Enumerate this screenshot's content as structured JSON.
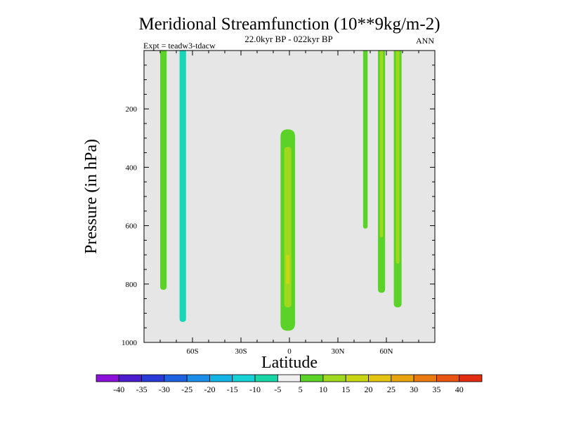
{
  "chart_data": {
    "type": "filled-contour",
    "title": "Meridional Streamfunction (10**9kg/m-2)",
    "subtitle": "22.0kyr BP - 022kyr BP",
    "left_note": "Expt = teadw3-tdacw",
    "right_note": "ANN",
    "xlabel": "Latitude",
    "ylabel": "Pressure (in hPa)",
    "xlim": [
      -90,
      90
    ],
    "ylim": [
      1000,
      0
    ],
    "x_ticks": [
      {
        "value": -60,
        "label": "60S"
      },
      {
        "value": -30,
        "label": "30S"
      },
      {
        "value": 0,
        "label": "0"
      },
      {
        "value": 30,
        "label": "30N"
      },
      {
        "value": 60,
        "label": "60N"
      }
    ],
    "y_ticks": [
      {
        "value": 200,
        "label": "200"
      },
      {
        "value": 400,
        "label": "400"
      },
      {
        "value": 600,
        "label": "600"
      },
      {
        "value": 800,
        "label": "800"
      },
      {
        "value": 1000,
        "label": "1000"
      }
    ],
    "background_color": "#e6e6e6",
    "features": [
      {
        "name": "cell-75s",
        "center_lat": -78,
        "half_width_deg": 2,
        "p_top": 0,
        "p_bottom": 820,
        "level": "5 to 10",
        "color": "#5ad228"
      },
      {
        "name": "cell-65s",
        "center_lat": -66,
        "half_width_deg": 2,
        "p_top": 0,
        "p_bottom": 930,
        "level": "-10 to -5",
        "color": "#18d6b8"
      },
      {
        "name": "cell-eq-outer",
        "center_lat": -1,
        "half_width_deg": 4.5,
        "p_top": 270,
        "p_bottom": 960,
        "level": "5 to 10",
        "color": "#5ad228"
      },
      {
        "name": "cell-eq-inner",
        "center_lat": -1,
        "half_width_deg": 2.2,
        "p_top": 330,
        "p_bottom": 880,
        "level": "10 to 15",
        "color": "#a0d81e"
      },
      {
        "name": "cell-eq-core",
        "center_lat": -1,
        "half_width_deg": 1,
        "p_top": 700,
        "p_bottom": 800,
        "level": "15 to 20",
        "color": "#c8d614"
      },
      {
        "name": "cell-46n",
        "center_lat": 47,
        "half_width_deg": 1.4,
        "p_top": 0,
        "p_bottom": 610,
        "level": "5 to 10",
        "color": "#5ad228"
      },
      {
        "name": "cell-57n-outer",
        "center_lat": 57,
        "half_width_deg": 2.2,
        "p_top": 0,
        "p_bottom": 830,
        "level": "5 to 10",
        "color": "#5ad228"
      },
      {
        "name": "cell-57n-inner",
        "center_lat": 57,
        "half_width_deg": 1,
        "p_top": 0,
        "p_bottom": 640,
        "level": "10 to 15",
        "color": "#a0d81e"
      },
      {
        "name": "cell-67n-outer",
        "center_lat": 67,
        "half_width_deg": 2.4,
        "p_top": 0,
        "p_bottom": 880,
        "level": "5 to 10",
        "color": "#5ad228"
      },
      {
        "name": "cell-67n-inner",
        "center_lat": 67,
        "half_width_deg": 1.1,
        "p_top": 0,
        "p_bottom": 730,
        "level": "10 to 15",
        "color": "#a0d81e"
      }
    ],
    "colorbar": {
      "labels": [
        "-40",
        "-35",
        "-30",
        "-25",
        "-20",
        "-15",
        "-10",
        "-5",
        "5",
        "10",
        "15",
        "20",
        "25",
        "30",
        "35",
        "40"
      ],
      "colors": [
        "#8b10d8",
        "#4b1ccc",
        "#2a3ad6",
        "#1f62e0",
        "#1a8ee8",
        "#12b4e4",
        "#16d2d6",
        "#18d6a6",
        "#f0f0f0",
        "#5ad228",
        "#a0d81e",
        "#c8d614",
        "#e2c410",
        "#e8a40e",
        "#e87a10",
        "#e85412",
        "#e02c10"
      ]
    }
  }
}
